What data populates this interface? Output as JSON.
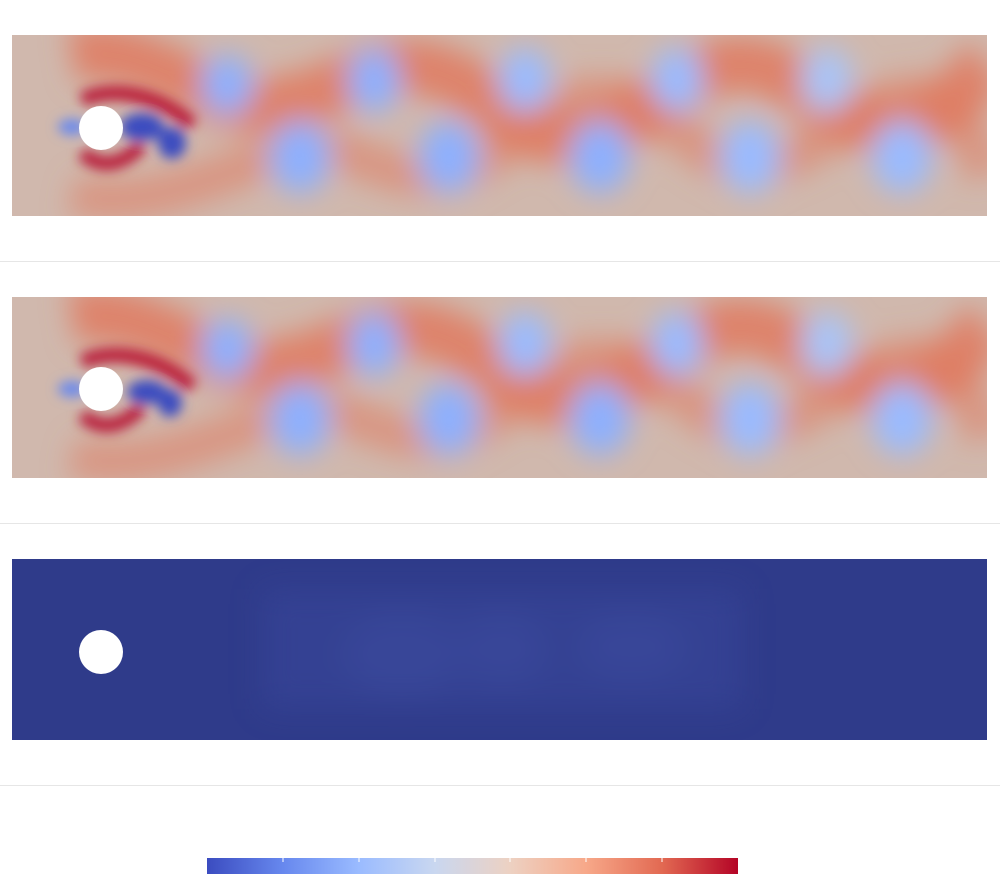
{
  "panels": [
    {
      "id": "top",
      "field": "flow-field",
      "wake": "vortex-street"
    },
    {
      "id": "middle",
      "field": "flow-field",
      "wake": "vortex-street"
    },
    {
      "id": "bottom",
      "field": "error-field",
      "wake": "faint"
    }
  ],
  "colors": {
    "background": "#ffffff",
    "divider": "#e6e6e6",
    "neutral": "#c9bdb6",
    "warm": "#e07a5f",
    "warm_strong": "#b40426",
    "cool": "#8db0fe",
    "cool_strong": "#3b4cc0",
    "error_field": "#2f3b8a",
    "obstacle": "#ffffff"
  },
  "colorbar": {
    "colormap": "coolwarm",
    "stops": [
      "#3b4cc0",
      "#6788ee",
      "#9abbff",
      "#c9d7f0",
      "#edd1c2",
      "#f7a889",
      "#e26952",
      "#b40426"
    ],
    "tick_count": 6
  },
  "icons": {
    "obstacle": "circle-obstacle-icon"
  }
}
